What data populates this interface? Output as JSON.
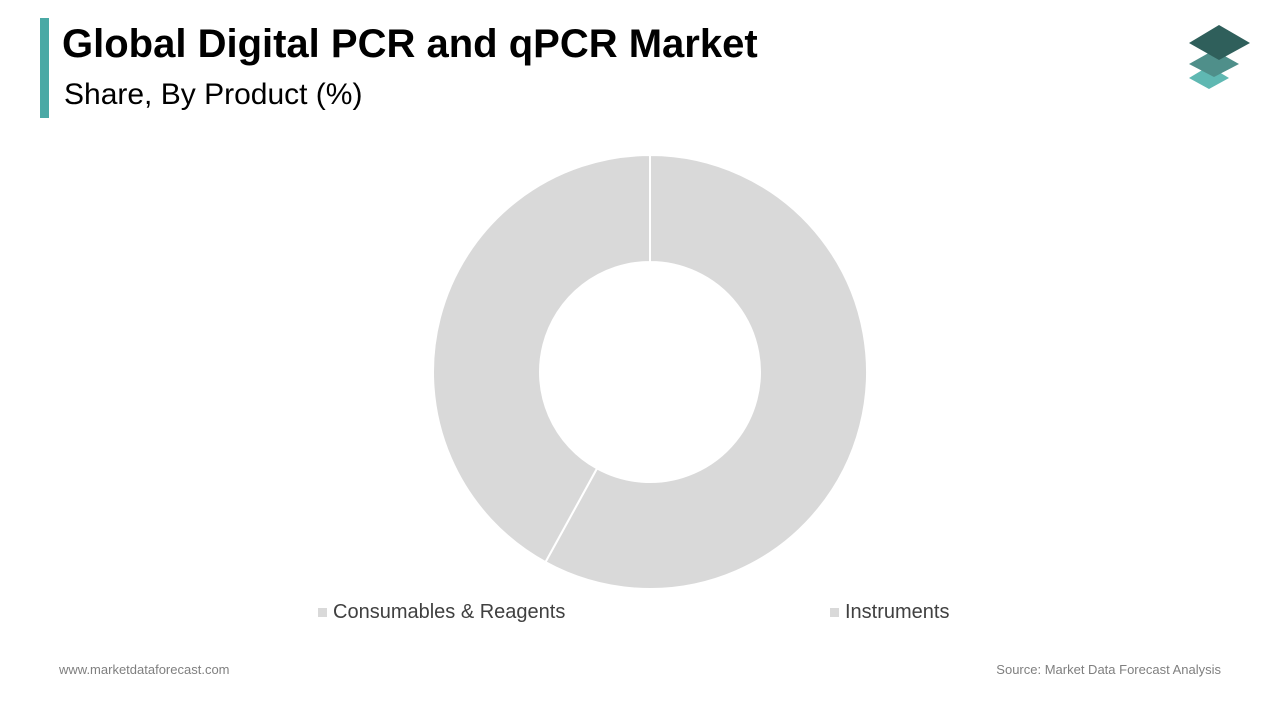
{
  "header": {
    "title": "Global Digital PCR and qPCR Market",
    "subtitle": "Share, By Product (%)"
  },
  "colors": {
    "accent": "#4aa9a5",
    "slice": "#d9d9d9",
    "logo_top": "#2f5f5b",
    "logo_mid": "#4f8f8a",
    "logo_bottom": "#5fb8b2"
  },
  "logo": {
    "icon": "stacked-layers-icon"
  },
  "chart_data": {
    "type": "pie",
    "variant": "donut",
    "categories": [
      "Consumables & Reagents",
      "Instruments"
    ],
    "values": [
      58,
      42
    ],
    "legend_position": "bottom"
  },
  "footer": {
    "website": "www.marketdataforecast.com",
    "source": "Source: Market Data Forecast Analysis"
  }
}
